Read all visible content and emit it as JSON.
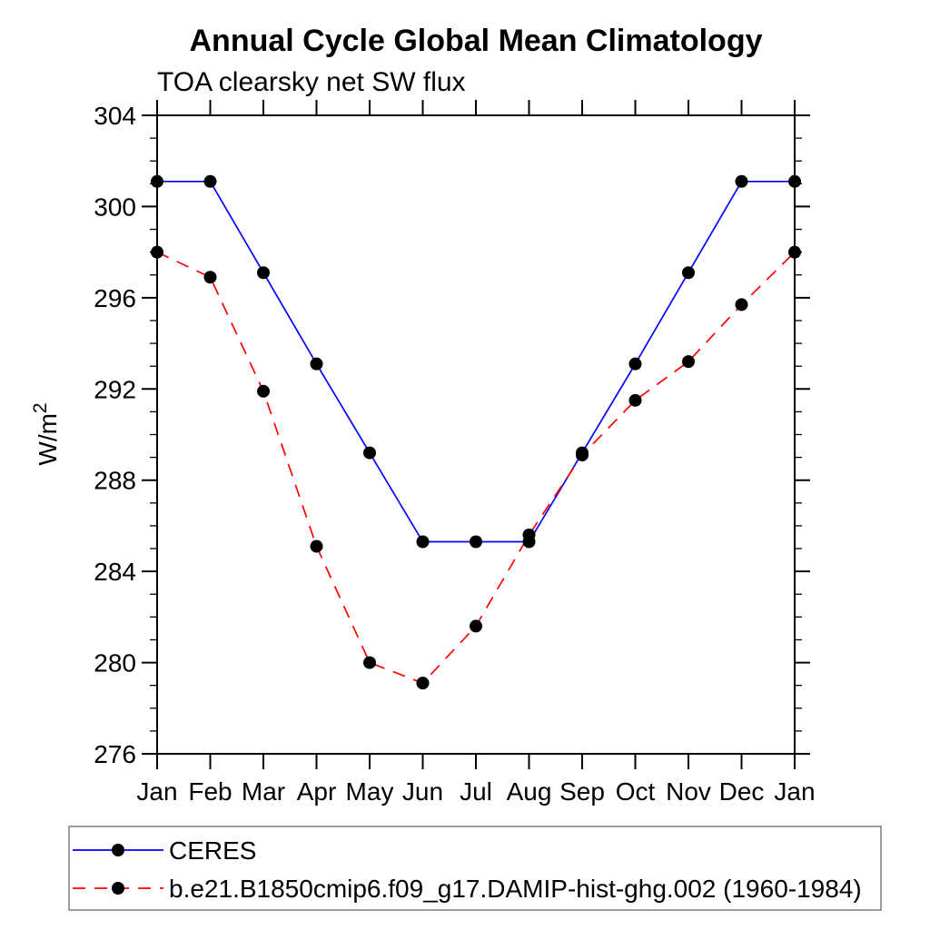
{
  "chart_data": {
    "type": "line",
    "title": "Annual Cycle Global Mean Climatology",
    "subtitle": "TOA clearsky net SW flux",
    "ylabel": "W/m²",
    "ylabel_parts": {
      "base": "W/m",
      "exp": "2"
    },
    "x_tick_labels": [
      "Jan",
      "Feb",
      "Mar",
      "Apr",
      "May",
      "Jun",
      "Jul",
      "Aug",
      "Sep",
      "Oct",
      "Nov",
      "Dec",
      "Jan"
    ],
    "ylim": [
      276,
      304
    ],
    "y_major_ticks": [
      276,
      280,
      284,
      288,
      292,
      296,
      300,
      304
    ],
    "y_minor_step": 1,
    "grid": "off",
    "legend_position": "bottom-left-box",
    "frame_color": "#000000",
    "marker": "filled-circle",
    "marker_color": "#000000",
    "legend_border_color": "#7f7f7f",
    "series": [
      {
        "name": "CERES",
        "color": "#0000ff",
        "style": "solid",
        "values": [
          301.1,
          301.1,
          297.1,
          293.1,
          289.2,
          285.3,
          285.3,
          285.3,
          289.2,
          293.1,
          297.1,
          301.1,
          301.1
        ]
      },
      {
        "name": "b.e21.B1850cmip6.f09_g17.DAMIP-hist-ghg.002 (1960-1984)",
        "color": "#ff0000",
        "style": "dashed",
        "values": [
          298.0,
          296.9,
          291.9,
          285.1,
          280.0,
          279.1,
          281.6,
          285.6,
          289.1,
          291.5,
          293.2,
          295.7,
          298.0
        ]
      }
    ]
  }
}
